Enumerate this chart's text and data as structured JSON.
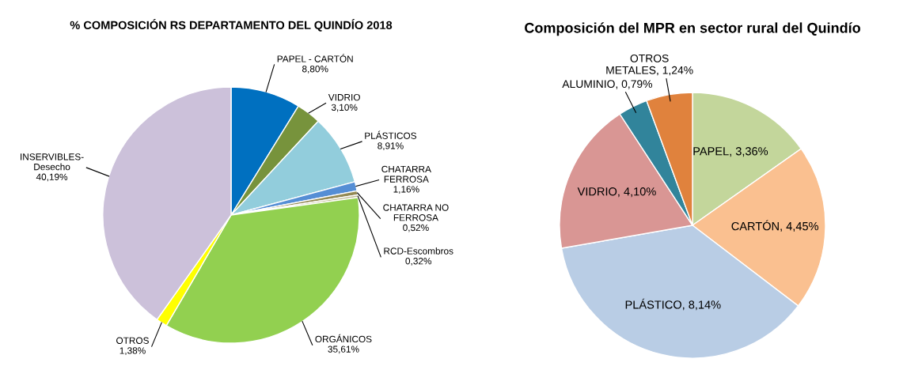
{
  "chart_data": [
    {
      "type": "pie",
      "title": "% COMPOSICIÓN RS DEPARTAMENTO DEL QUINDÍO 2018",
      "categories": [
        "PAPEL - CARTÓN",
        "VIDRIO",
        "PLÁSTICOS",
        "CHATARRA\nFERROSA",
        "CHATARRA NO\nFERROSA",
        "RCD-Escombros",
        "ORGÁNICOS",
        "OTROS",
        "INSERVIBLES-\nDesecho"
      ],
      "values": [
        8.8,
        3.1,
        8.91,
        1.16,
        0.52,
        0.32,
        35.61,
        1.38,
        40.19
      ],
      "value_labels": [
        "8,80%",
        "3,10%",
        "8,91%",
        "1,16%",
        "0,52%",
        "0,32%",
        "35,61%",
        "1,38%",
        "40,19%"
      ],
      "colors": [
        "#0070c0",
        "#77933c",
        "#92cddc",
        "#558ed5",
        "#948a54",
        "#c4bd97",
        "#92d050",
        "#ffff00",
        "#ccc1da"
      ]
    },
    {
      "type": "pie",
      "title": "Composición del MPR en sector rural del Quindío",
      "categories": [
        "PAPEL",
        "CARTÓN",
        "PLÁSTICO",
        "VIDRIO",
        "ALUMINIO",
        "OTROS\nMETALES"
      ],
      "values": [
        3.36,
        4.45,
        8.14,
        4.1,
        0.79,
        1.24
      ],
      "value_labels": [
        "3,36%",
        "4,45%",
        "8,14%",
        "4,10%",
        "0,79%",
        "1,24%"
      ],
      "colors": [
        "#c3d69b",
        "#fac090",
        "#b9cde5",
        "#d99694",
        "#31849b",
        "#e0823d"
      ]
    }
  ]
}
